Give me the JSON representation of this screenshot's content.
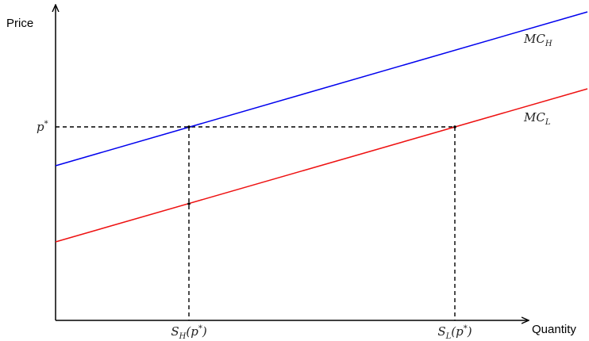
{
  "axes": {
    "y_label": "Price",
    "x_label": "Quantity"
  },
  "curves": [
    {
      "name": {
        "base": "MC",
        "sub": "H"
      }
    },
    {
      "name": {
        "base": "MC",
        "sub": "L"
      }
    }
  ],
  "price_level": {
    "base": "p",
    "sup": "*"
  },
  "quantities": [
    {
      "base": "S",
      "sub": "H",
      "open": "(p",
      "sup": "*",
      "close": ")"
    },
    {
      "base": "S",
      "sub": "L",
      "open": "(p",
      "sup": "*",
      "close": ")"
    }
  ]
}
